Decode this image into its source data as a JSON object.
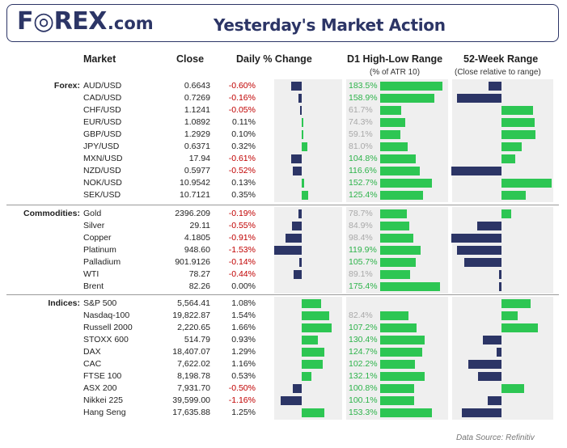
{
  "header": {
    "logo_main": "F◎REX",
    "logo_suffix": ".com",
    "title": "Yesterday's Market Action"
  },
  "columns": {
    "market": "Market",
    "close": "Close",
    "daily_change": "Daily % Change",
    "d1_range": "D1 High-Low Range",
    "d1_range_sub": "(% of ATR 10)",
    "week52": "52-Week Range",
    "week52_sub": "(Close relative to range)"
  },
  "colors": {
    "negative_bar": "#2c3566",
    "positive_bar": "#2dc653",
    "negative_text": "#c00000",
    "atr_high": "#2db34a",
    "atr_low": "#a8a8a8"
  },
  "chart_data": {
    "type": "table",
    "groups": [
      {
        "name": "Forex:",
        "rows": [
          {
            "market": "AUD/USD",
            "close": "0.6643",
            "change": -0.6,
            "change_label": "-0.60%",
            "atr": 183.5,
            "atr_label": "183.5%",
            "w52": -0.11
          },
          {
            "market": "CAD/USD",
            "close": "0.7269",
            "change": -0.16,
            "change_label": "-0.16%",
            "atr": 158.9,
            "atr_label": "158.9%",
            "w52": -0.38
          },
          {
            "market": "CHF/USD",
            "close": "1.1241",
            "change": -0.05,
            "change_label": "-0.05%",
            "atr": 61.7,
            "atr_label": "61.7%",
            "w52": 0.27
          },
          {
            "market": "EUR/USD",
            "close": "1.0892",
            "change": 0.11,
            "change_label": "0.11%",
            "atr": 74.3,
            "atr_label": "74.3%",
            "w52": 0.28
          },
          {
            "market": "GBP/USD",
            "close": "1.2929",
            "change": 0.1,
            "change_label": "0.10%",
            "atr": 59.1,
            "atr_label": "59.1%",
            "w52": 0.29
          },
          {
            "market": "JPY/USD",
            "close": "0.6371",
            "change": 0.32,
            "change_label": "0.32%",
            "atr": 81.0,
            "atr_label": "81.0%",
            "w52": 0.17
          },
          {
            "market": "MXN/USD",
            "close": "17.94",
            "change": -0.61,
            "change_label": "-0.61%",
            "atr": 104.8,
            "atr_label": "104.8%",
            "w52": 0.12
          },
          {
            "market": "NZD/USD",
            "close": "0.5977",
            "change": -0.52,
            "change_label": "-0.52%",
            "atr": 116.6,
            "atr_label": "116.6%",
            "w52": -0.43
          },
          {
            "market": "NOK/USD",
            "close": "10.9542",
            "change": 0.13,
            "change_label": "0.13%",
            "atr": 152.7,
            "atr_label": "152.7%",
            "w52": 0.43
          },
          {
            "market": "SEK/USD",
            "close": "10.7121",
            "change": 0.35,
            "change_label": "0.35%",
            "atr": 125.4,
            "atr_label": "125.4%",
            "w52": 0.21
          }
        ]
      },
      {
        "name": "Commodities:",
        "rows": [
          {
            "market": "Gold",
            "close": "2396.209",
            "change": -0.19,
            "change_label": "-0.19%",
            "atr": 78.7,
            "atr_label": "78.7%",
            "w52": 0.08
          },
          {
            "market": "Silver",
            "close": "29.11",
            "change": -0.55,
            "change_label": "-0.55%",
            "atr": 84.9,
            "atr_label": "84.9%",
            "w52": -0.21
          },
          {
            "market": "Copper",
            "close": "4.1805",
            "change": -0.91,
            "change_label": "-0.91%",
            "atr": 98.4,
            "atr_label": "98.4%",
            "w52": -0.43
          },
          {
            "market": "Platinum",
            "close": "948.60",
            "change": -1.53,
            "change_label": "-1.53%",
            "atr": 119.9,
            "atr_label": "119.9%",
            "w52": -0.38
          },
          {
            "market": "Palladium",
            "close": "901.9126",
            "change": -0.14,
            "change_label": "-0.14%",
            "atr": 105.7,
            "atr_label": "105.7%",
            "w52": -0.32
          },
          {
            "market": "WTI",
            "close": "78.27",
            "change": -0.44,
            "change_label": "-0.44%",
            "atr": 89.1,
            "atr_label": "89.1%",
            "w52": -0.02
          },
          {
            "market": "Brent",
            "close": "82.26",
            "change": 0.0,
            "change_label": "0.00%",
            "atr": 175.4,
            "atr_label": "175.4%",
            "w52": -0.02
          }
        ]
      },
      {
        "name": "Indices:",
        "rows": [
          {
            "market": "S&P 500",
            "close": "5,564.41",
            "change": 1.08,
            "change_label": "1.08%",
            "atr": null,
            "atr_label": "",
            "w52": 0.25
          },
          {
            "market": "Nasdaq-100",
            "close": "19,822.87",
            "change": 1.54,
            "change_label": "1.54%",
            "atr": 82.4,
            "atr_label": "82.4%",
            "w52": 0.14
          },
          {
            "market": "Russell 2000",
            "close": "2,220.65",
            "change": 1.66,
            "change_label": "1.66%",
            "atr": 107.2,
            "atr_label": "107.2%",
            "w52": 0.31
          },
          {
            "market": "STOXX 600",
            "close": "514.79",
            "change": 0.93,
            "change_label": "0.93%",
            "atr": 130.4,
            "atr_label": "130.4%",
            "w52": -0.16
          },
          {
            "market": "DAX",
            "close": "18,407.07",
            "change": 1.29,
            "change_label": "1.29%",
            "atr": 124.7,
            "atr_label": "124.7%",
            "w52": -0.04
          },
          {
            "market": "CAC",
            "close": "7,622.02",
            "change": 1.16,
            "change_label": "1.16%",
            "atr": 102.2,
            "atr_label": "102.2%",
            "w52": -0.28
          },
          {
            "market": "FTSE 100",
            "close": "8,198.78",
            "change": 0.53,
            "change_label": "0.53%",
            "atr": 132.1,
            "atr_label": "132.1%",
            "w52": -0.2
          },
          {
            "market": "ASX 200",
            "close": "7,931.70",
            "change": -0.5,
            "change_label": "-0.50%",
            "atr": 100.8,
            "atr_label": "100.8%",
            "w52": 0.19
          },
          {
            "market": "Nikkei 225",
            "close": "39,599.00",
            "change": -1.16,
            "change_label": "-1.16%",
            "atr": 100.1,
            "atr_label": "100.1%",
            "w52": -0.12
          },
          {
            "market": "Hang Seng",
            "close": "17,635.88",
            "change": 1.25,
            "change_label": "1.25%",
            "atr": 153.3,
            "atr_label": "153.3%",
            "w52": -0.34
          }
        ]
      }
    ]
  },
  "source": "Data Source: Refinitiv"
}
